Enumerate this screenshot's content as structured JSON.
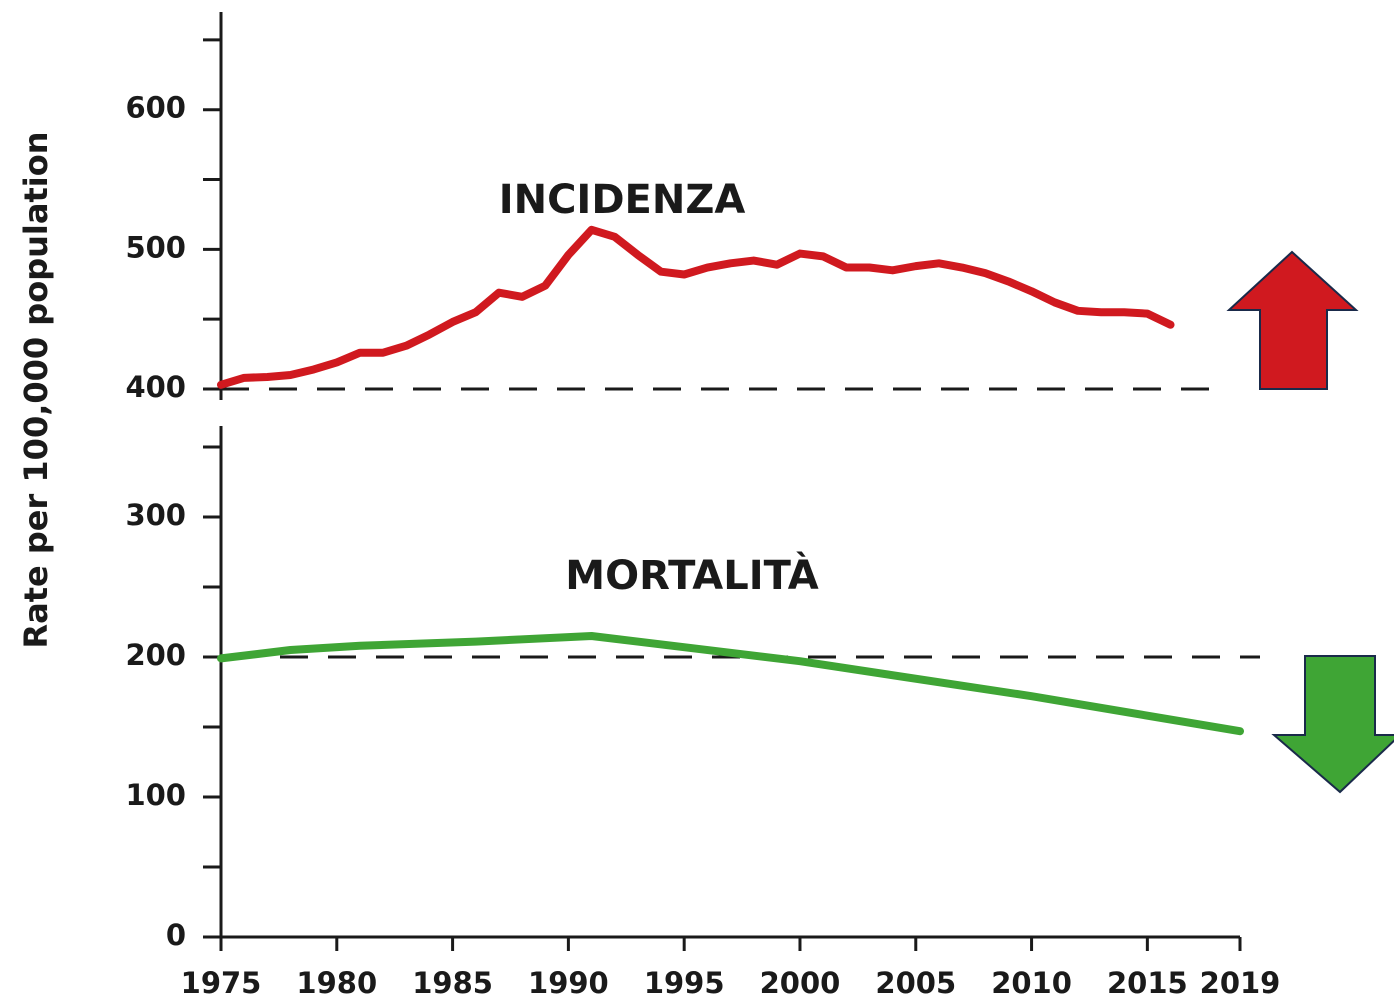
{
  "chart_data": [
    {
      "type": "line",
      "ylabel": "Rate per 100,000 population",
      "xlim": [
        1975,
        2019
      ],
      "ylim": [
        400,
        670
      ],
      "yticks": [
        400,
        500,
        600
      ],
      "minor_yticks": [
        450,
        550,
        650
      ],
      "reference": 400,
      "series": [
        {
          "name": "INCIDENZA",
          "color": "#d0191f",
          "x": [
            1975,
            1976,
            1977,
            1978,
            1979,
            1980,
            1981,
            1982,
            1983,
            1984,
            1985,
            1986,
            1987,
            1988,
            1989,
            1990,
            1991,
            1992,
            1993,
            1994,
            1995,
            1996,
            1997,
            1998,
            1999,
            2000,
            2001,
            2002,
            2003,
            2004,
            2005,
            2006,
            2007,
            2008,
            2009,
            2010,
            2011,
            2012,
            2013,
            2014,
            2015,
            2016
          ],
          "values": [
            403,
            408,
            408.6,
            410,
            414,
            419,
            426,
            426,
            431,
            439,
            448,
            455,
            469,
            466,
            474,
            496,
            514,
            509,
            496,
            484,
            482,
            487,
            490,
            492,
            489,
            497,
            495,
            487,
            487,
            485,
            488,
            490,
            487,
            483,
            477,
            470,
            462,
            456,
            455,
            455,
            454,
            446
          ]
        }
      ]
    },
    {
      "type": "line",
      "xlim": [
        1975,
        2019
      ],
      "xticks": [
        1975,
        1980,
        1985,
        1990,
        1995,
        2000,
        2005,
        2010,
        2015,
        2019
      ],
      "ylim": [
        0,
        365
      ],
      "yticks": [
        0,
        100,
        200,
        300
      ],
      "minor_yticks": [
        50,
        150,
        250,
        350
      ],
      "reference": 200,
      "series": [
        {
          "name": "MORTALITÀ",
          "color": "#3fa535",
          "x": [
            1975,
            1978,
            1981,
            1986,
            1991,
            2000,
            2010,
            2019
          ],
          "values": [
            199,
            205,
            208,
            211,
            215,
            197,
            172,
            147
          ]
        }
      ]
    }
  ]
}
